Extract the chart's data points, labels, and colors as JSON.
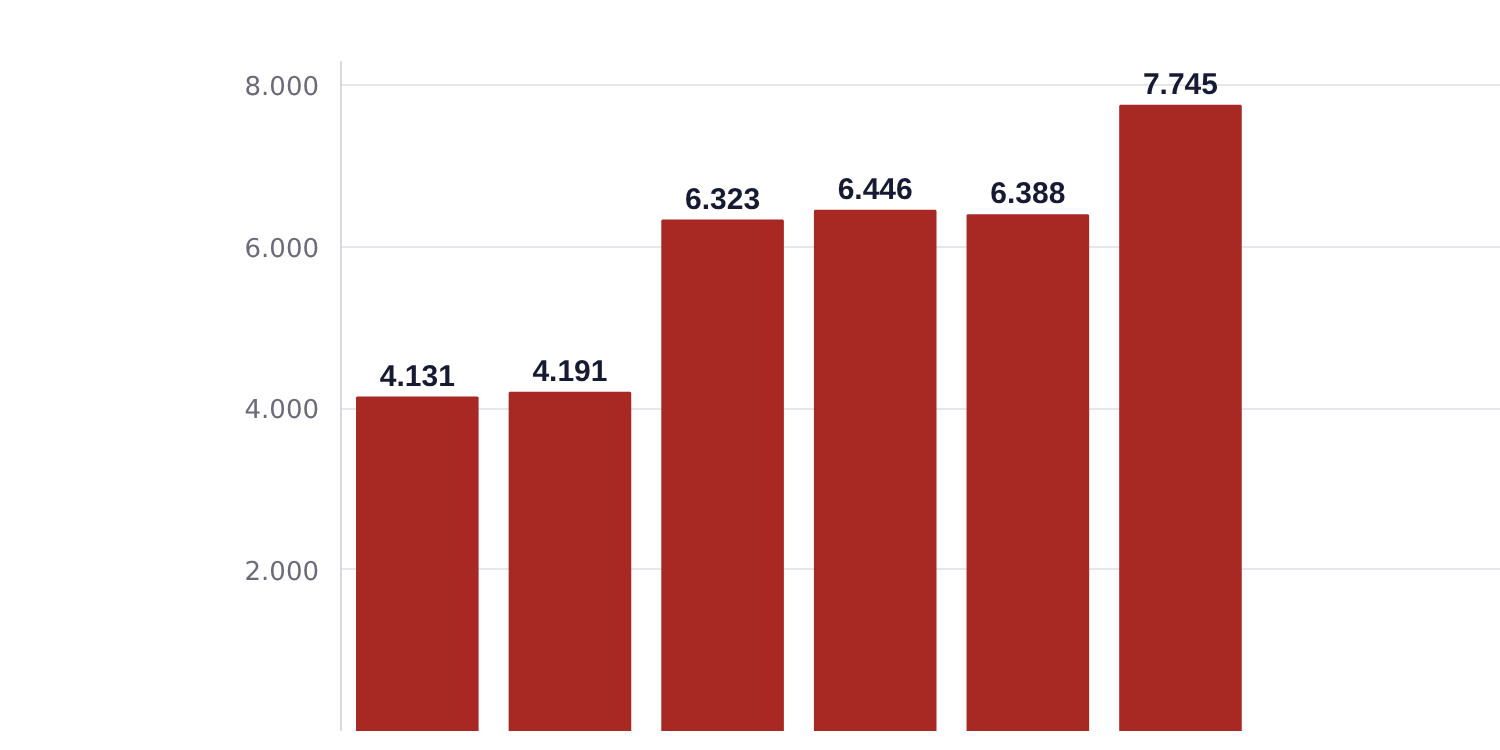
{
  "chart_data": {
    "type": "bar",
    "categories": [
      null,
      null,
      null,
      null,
      null,
      null
    ],
    "values": [
      4131,
      4191,
      6323,
      6446,
      6388,
      7745
    ],
    "value_labels": [
      "4.131",
      "4.191",
      "6.323",
      "6.446",
      "6.388",
      "7.745"
    ],
    "color": "#a82824",
    "ylim": [
      0,
      8300
    ],
    "yticks": [
      {
        "value": 2000,
        "label": "2.000"
      },
      {
        "value": 4000,
        "label": "4.000"
      },
      {
        "value": 6000,
        "label": "6.000"
      },
      {
        "value": 8000,
        "label": "8.000"
      }
    ],
    "grid": "y",
    "tick_labels": "y"
  }
}
